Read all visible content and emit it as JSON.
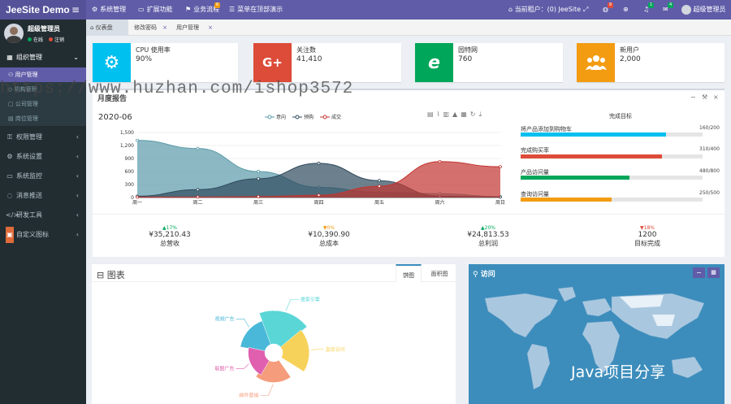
{
  "app": {
    "logo": "JeeSite Demo"
  },
  "topmenu": [
    {
      "icon": "gear-icon",
      "label": "系统管理"
    },
    {
      "icon": "monitor-icon",
      "label": "扩展功能"
    },
    {
      "icon": "flag-icon",
      "label": "业务流程"
    },
    {
      "icon": "menu-icon",
      "label": "菜单在顶部演示"
    }
  ],
  "topmenu_badge": "6",
  "tenant": "当前租户：(0) JeeSite",
  "top_badges": [
    "8",
    "1",
    "4"
  ],
  "top_user": "超级管理员",
  "user": {
    "name": "超级管理员",
    "status_online": "在线",
    "status_logout": "注销",
    "online_color": "#00a65a",
    "logout_color": "#dd4b39"
  },
  "sidebar": {
    "groups": [
      {
        "label": "组织管理"
      },
      {
        "label": "权限管理"
      },
      {
        "label": "系统设置"
      },
      {
        "label": "系统监控"
      },
      {
        "label": "消息推送"
      },
      {
        "label": "研发工具"
      },
      {
        "label": "自定义图标"
      }
    ],
    "subitems": [
      {
        "label": "用户管理"
      },
      {
        "label": "机构管理"
      },
      {
        "label": "公司管理"
      },
      {
        "label": "岗位管理"
      }
    ]
  },
  "tabs": [
    {
      "label": "仪表盘"
    },
    {
      "label": "修改密码"
    },
    {
      "label": "用户管理"
    }
  ],
  "info_boxes": [
    {
      "label": "CPU 使用率",
      "value": "90%",
      "color": "#00c0ef",
      "icon": "gear-icon"
    },
    {
      "label": "关注数",
      "value": "41,410",
      "color": "#dd4b39",
      "icon": "google-plus-icon",
      "icon_text": "G+"
    },
    {
      "label": "园特网",
      "value": "760",
      "color": "#00a65a",
      "icon": "browser-e-icon",
      "icon_text": "e"
    },
    {
      "label": "新用户",
      "value": "2,000",
      "color": "#f39c12",
      "icon": "users-icon"
    }
  ],
  "report": {
    "title": "月度报告",
    "period": "2020-06",
    "goals_title": "完成目标"
  },
  "goals": [
    {
      "label": "将产品添加到购物车",
      "value": "160/200",
      "fraction": 0.8,
      "color": "#00c0ef"
    },
    {
      "label": "完成购买率",
      "value": "310/400",
      "fraction": 0.775,
      "color": "#dd4b39"
    },
    {
      "label": "产品访问量",
      "value": "480/800",
      "fraction": 0.6,
      "color": "#00a65a"
    },
    {
      "label": "查询访问量",
      "value": "250/500",
      "fraction": 0.5,
      "color": "#f39c12"
    }
  ],
  "kpis": [
    {
      "pct": "▲17%",
      "color": "#00a65a",
      "value": "¥35,210.43",
      "label": "总营收"
    },
    {
      "pct": "▼0%",
      "color": "#f39c12",
      "value": "¥10,390.90",
      "label": "总成本"
    },
    {
      "pct": "▲20%",
      "color": "#00a65a",
      "value": "¥24,813.53",
      "label": "总利润"
    },
    {
      "pct": "▼18%",
      "color": "#dd4b39",
      "value": "1200",
      "label": "目标完成"
    }
  ],
  "pie_panel": {
    "title": "图表",
    "tab_pie": "饼图",
    "tab_area": "面积图"
  },
  "map_panel": {
    "title": "访问"
  },
  "watermarks": [
    "https://www.huzhan.com/ishop3572",
    "Java项目分享"
  ],
  "chart_data": [
    {
      "type": "area",
      "categories": [
        "周一",
        "周二",
        "周三",
        "周四",
        "周五",
        "周六",
        "周日"
      ],
      "ylim": [
        0,
        1500
      ],
      "yticks": [
        "0",
        "300",
        "600",
        "900",
        "1,200",
        "1,500"
      ],
      "series": [
        {
          "name": "意向",
          "values": [
            1320,
            1132,
            601,
            234,
            120,
            90,
            20
          ],
          "color": "#5a9aa8"
        },
        {
          "name": "预购",
          "values": [
            30,
            182,
            434,
            791,
            390,
            30,
            10
          ],
          "color": "#2f4a5c"
        },
        {
          "name": "成交",
          "values": [
            10,
            12,
            21,
            54,
            260,
            830,
            710
          ],
          "color": "#c23531"
        }
      ],
      "legend": "top-center"
    },
    {
      "type": "pie",
      "subtype": "nightingale",
      "slices": [
        {
          "name": "视频广告",
          "value": 30,
          "color": "#4ab8d8"
        },
        {
          "name": "搜索引擎",
          "value": 40,
          "color": "#5ad6d6"
        },
        {
          "name": "直接访问",
          "value": 32,
          "color": "#f7d25a"
        },
        {
          "name": "邮件营销",
          "value": 25,
          "color": "#f59c7c"
        },
        {
          "name": "联盟广告",
          "value": 20,
          "color": "#e05fae"
        }
      ]
    }
  ]
}
